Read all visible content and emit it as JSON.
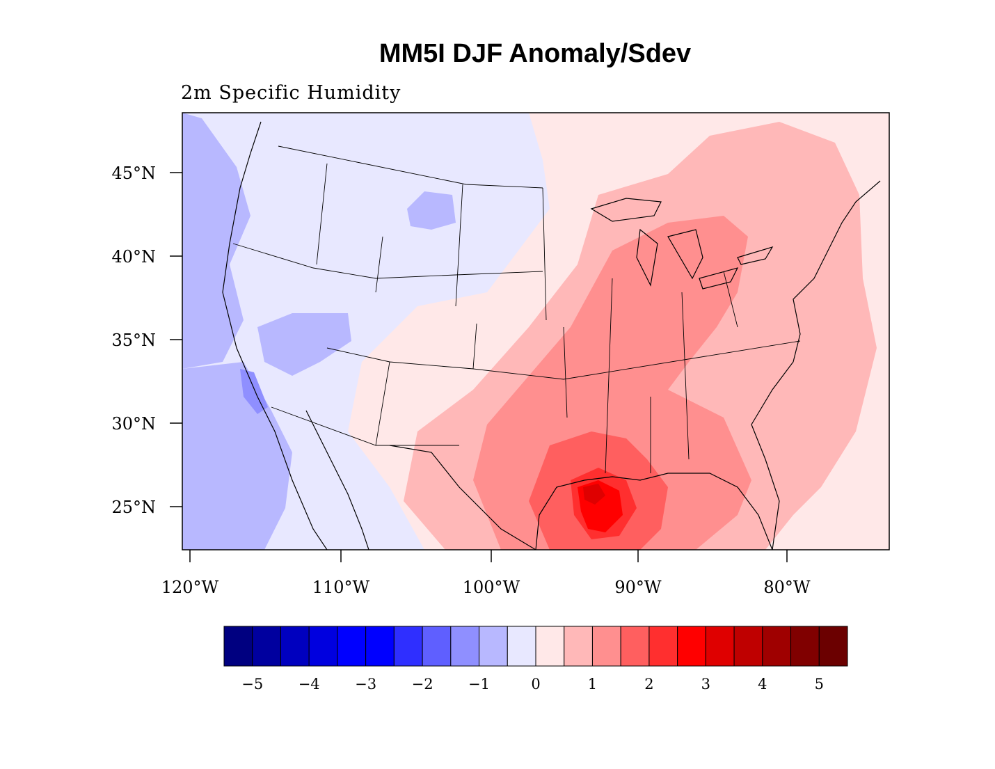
{
  "title": "MM5I DJF Anomaly/Sdev",
  "subtitle": "2m Specific Humidity",
  "map": {
    "lat_labels": [
      "45°N",
      "40°N",
      "35°N",
      "30°N",
      "25°N"
    ],
    "lon_labels": [
      "120°W",
      "110°W",
      "100°W",
      "90°W",
      "80°W"
    ]
  },
  "colorbar": {
    "colors": [
      "#000080",
      "#00009f",
      "#0000bf",
      "#0000df",
      "#0000ff",
      "#0000ff",
      "#2f2fff",
      "#5f5fff",
      "#8f8fff",
      "#b8b8ff",
      "#e8e8ff",
      "#ffe8e8",
      "#ffb8b8",
      "#ff8f8f",
      "#ff5f5f",
      "#ff2f2f",
      "#ff0000",
      "#df0000",
      "#bf0000",
      "#9f0000",
      "#800000",
      "#6b0000"
    ],
    "labels": [
      "−5",
      "−4",
      "−3",
      "−2",
      "−1",
      "0",
      "1",
      "2",
      "3",
      "4",
      "5"
    ]
  }
}
